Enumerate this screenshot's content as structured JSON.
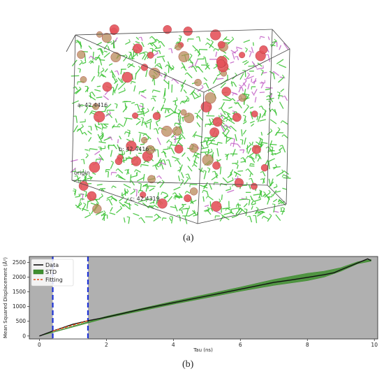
{
  "figure": {
    "caption_a": "(a)",
    "caption_b": "(b)"
  },
  "box3d": {
    "edge_labels": [
      "a: 42.4416",
      "b: 42.4416",
      "c: 42.4319"
    ],
    "origin_label": "origin",
    "colors": {
      "molecule_green": "#33c02b",
      "molecule_magenta": "#c25fc6",
      "sphere_red": "#e4535b",
      "edge": "#444444"
    }
  },
  "chart_data": {
    "type": "line",
    "title": "",
    "xlabel": "Tau (ns)",
    "ylabel": "Mean Squared Displacement (Å²)",
    "xlim": [
      -0.3,
      10.1
    ],
    "ylim": [
      -100,
      2700
    ],
    "xticks": [
      0,
      2,
      4,
      6,
      8,
      10
    ],
    "yticks": [
      0,
      500,
      1000,
      1500,
      2000,
      2500
    ],
    "grid": false,
    "legend_position": "top-left",
    "fit_window": {
      "start": 0.4,
      "end": 1.45
    },
    "background_colors": {
      "outside_window": "#b0b0b0",
      "inside_window": "#ffffff",
      "window_lines": "#1f33d6"
    },
    "series": [
      {
        "name": "Data",
        "kind": "line",
        "color": "#111111",
        "x": [
          0,
          0.4,
          1,
          1.45,
          2,
          3,
          4,
          5,
          6,
          7,
          7.5,
          8,
          8.5,
          8.8,
          9,
          9.5,
          9.8,
          9.9
        ],
        "y": [
          0,
          170,
          400,
          520,
          640,
          900,
          1130,
          1360,
          1590,
          1820,
          1900,
          1990,
          2080,
          2150,
          2250,
          2480,
          2620,
          2560
        ]
      },
      {
        "name": "STD",
        "kind": "band",
        "color": "#3f8f2f",
        "x": [
          0,
          2,
          4,
          6,
          7,
          8,
          8.5,
          9,
          9.5,
          9.9
        ],
        "y_lower": [
          0,
          610,
          1080,
          1520,
          1720,
          1880,
          2000,
          2200,
          2450,
          2540
        ],
        "y_upper": [
          0,
          670,
          1180,
          1660,
          1920,
          2130,
          2200,
          2320,
          2520,
          2600
        ]
      },
      {
        "name": "Fitting",
        "kind": "dashed",
        "color": "#d94c1a",
        "x": [
          0.4,
          1.45
        ],
        "y": [
          170,
          520
        ]
      }
    ]
  }
}
